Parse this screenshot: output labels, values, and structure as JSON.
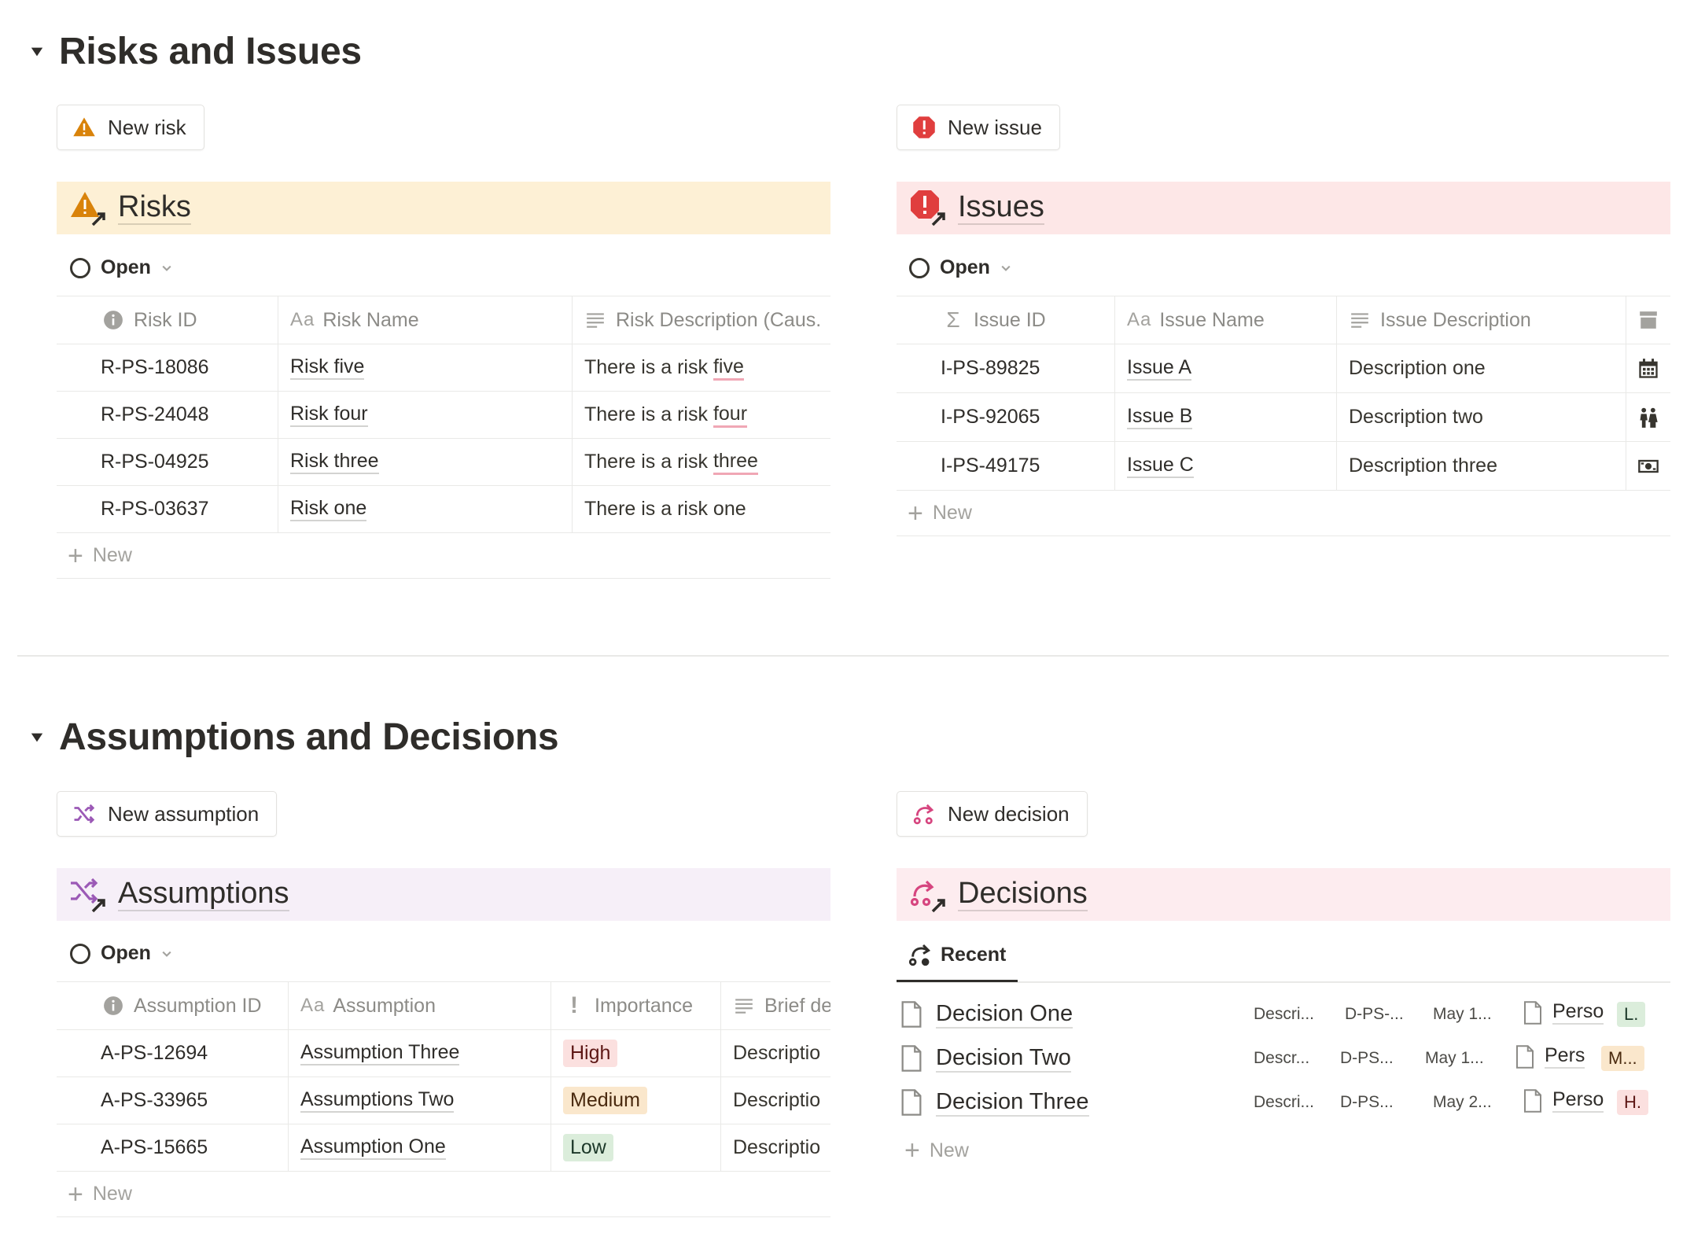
{
  "sections": {
    "risks_issues": {
      "title": "Risks and Issues"
    },
    "assumptions_decisions": {
      "title": "Assumptions and Decisions"
    }
  },
  "buttons": {
    "new_risk": "New risk",
    "new_issue": "New issue",
    "new_assumption": "New assumption",
    "new_decision": "New decision"
  },
  "risks": {
    "title": "Risks",
    "view": "Open",
    "headers": [
      "Risk ID",
      "Risk Name",
      "Risk Description (Caus."
    ],
    "rows": [
      {
        "id": "R-PS-18086",
        "name": "Risk five",
        "desc_pre": "There is a risk ",
        "desc_word": "five"
      },
      {
        "id": "R-PS-24048",
        "name": "Risk four",
        "desc_pre": "There is a risk ",
        "desc_word": "four"
      },
      {
        "id": "R-PS-04925",
        "name": "Risk three",
        "desc_pre": "There is a risk ",
        "desc_word": "three"
      },
      {
        "id": "R-PS-03637",
        "name": "Risk one",
        "desc_pre": "There is a risk one",
        "desc_word": ""
      }
    ],
    "new_label": "New"
  },
  "issues": {
    "title": "Issues",
    "view": "Open",
    "headers": [
      "Issue ID",
      "Issue Name",
      "Issue Description"
    ],
    "rows": [
      {
        "id": "I-PS-89825",
        "name": "Issue A",
        "desc": "Description one",
        "icon": "calendar-icon"
      },
      {
        "id": "I-PS-92065",
        "name": "Issue B",
        "desc": "Description two",
        "icon": "people-icon"
      },
      {
        "id": "I-PS-49175",
        "name": "Issue C",
        "desc": "Description three",
        "icon": "money-icon"
      }
    ],
    "new_label": "New"
  },
  "assumptions": {
    "title": "Assumptions",
    "view": "Open",
    "headers": [
      "Assumption ID",
      "Assumption",
      "Importance",
      "Brief de"
    ],
    "rows": [
      {
        "id": "A-PS-12694",
        "name": "Assumption Three",
        "importance": "High",
        "brief": "Descriptio"
      },
      {
        "id": "A-PS-33965",
        "name": "Assumptions Two",
        "importance": "Medium",
        "brief": "Descriptio"
      },
      {
        "id": "A-PS-15665",
        "name": "Assumption One",
        "importance": "Low",
        "brief": "Descriptio"
      }
    ],
    "new_label": "New"
  },
  "decisions": {
    "title": "Decisions",
    "view": "Recent",
    "rows": [
      {
        "title": "Decision One",
        "desc": "Descri...",
        "id": "D-PS-...",
        "date": "May 1...",
        "person": "Perso",
        "tag": "L."
      },
      {
        "title": "Decision Two",
        "desc": "Descr...",
        "id": "D-PS...",
        "date": "May 1...",
        "person": "Pers",
        "tag": "M..."
      },
      {
        "title": "Decision Three",
        "desc": "Descri...",
        "id": "D-PS...",
        "date": "May 2...",
        "person": "Perso",
        "tag": "H."
      }
    ],
    "new_label": "New"
  },
  "colors": {
    "risk_banner": "#fdf0d5",
    "issue_banner": "#fde7e7",
    "assumption_banner": "#f6eff8",
    "decision_banner": "#fdecef",
    "warning": "#d9830a",
    "issue_red": "#e03e3e",
    "assumption_purple": "#9b59b6",
    "decision_pink": "#d6457f",
    "tag_high": "#fbe0df",
    "tag_medium": "#fae7cc",
    "tag_low": "#dbeddb"
  }
}
